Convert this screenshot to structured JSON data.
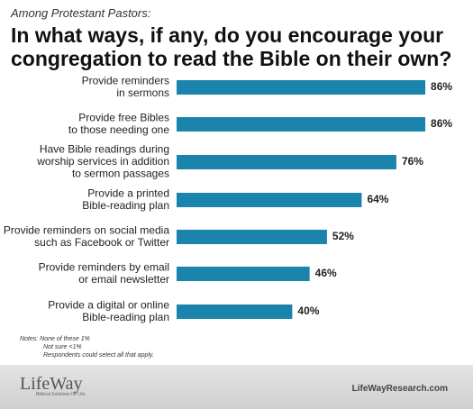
{
  "chart_data": {
    "type": "bar",
    "orientation": "horizontal",
    "subtitle": "Among Protestant Pastors:",
    "title": "In what ways, if any, do you encourage your congregation to read the Bible on their own?",
    "categories": [
      [
        "Provide reminders",
        "in sermons"
      ],
      [
        "Provide free Bibles",
        "to those needing one"
      ],
      [
        "Have Bible readings during",
        "worship services in addition",
        "to sermon passages"
      ],
      [
        "Provide a printed",
        "Bible-reading plan"
      ],
      [
        "Provide reminders on social media",
        "such as Facebook or Twitter"
      ],
      [
        "Provide reminders by email",
        "or email newsletter"
      ],
      [
        "Provide a digital or online",
        "Bible-reading plan"
      ]
    ],
    "values": [
      86,
      86,
      76,
      64,
      52,
      46,
      40
    ],
    "value_labels": [
      "86%",
      "86%",
      "76%",
      "64%",
      "52%",
      "46%",
      "40%"
    ],
    "color": "#1a84ad",
    "notes": [
      "Notes: None of these 1%",
      "Not sure <1%",
      "Respondents could select all that apply."
    ]
  },
  "footer": {
    "logo": "LifeWay",
    "tagline": "Biblical Solutions for Life",
    "url": "LifeWayResearch.com"
  }
}
